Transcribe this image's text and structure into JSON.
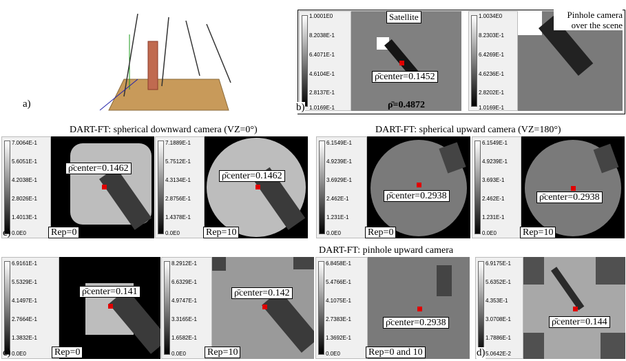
{
  "panel_labels": {
    "a": "a)",
    "b": "b)",
    "c1": "c)",
    "c2": "c)",
    "d": "d)"
  },
  "titles": {
    "down": "DART-FT: spherical downward camera (VZ=0°)",
    "up": "DART-FT: spherical upward camera (VZ=180°)",
    "pinhole": "DART-FT: pinhole upward camera"
  },
  "b": {
    "satellite_title": "Satellite",
    "pinhole_title_1": "Pinhole camera",
    "pinhole_title_2": "over the scene",
    "rho_center": "ρ̄center=0.1452",
    "rho_mean": "ρ̄=0.4872",
    "cbar1": [
      "1.0001E0",
      "8.2038E-1",
      "6.4071E-1",
      "4.6104E-1",
      "2.8137E-1",
      "1.0169E-1"
    ],
    "cbar2": [
      "1.0034E0",
      "8.2303E-1",
      "6.4269E-1",
      "4.6236E-1",
      "2.8202E-1",
      "1.0169E-1"
    ]
  },
  "row2": {
    "cbar1": [
      "7.0064E-1",
      "5.6051E-1",
      "4.2038E-1",
      "2.8026E-1",
      "1.4013E-1",
      "0.0E0"
    ],
    "cbar2": [
      "7.1889E-1",
      "5.7512E-1",
      "4.3134E-1",
      "2.8756E-1",
      "1.4378E-1",
      "0.0E0"
    ],
    "cbar3": [
      "6.1549E-1",
      "4.9239E-1",
      "3.6929E-1",
      "2.462E-1",
      "1.231E-1",
      "0.0E0"
    ],
    "cbar4": [
      "6.1549E-1",
      "4.9239E-1",
      "3.693E-1",
      "2.462E-1",
      "1.231E-1",
      "0.0E0"
    ],
    "rho1": "ρ̄center=0.1462",
    "rho2": "ρ̄center=0.1462",
    "rho3": "ρ̄center=0.2938",
    "rho4": "ρ̄center=0.2938",
    "rep1": "Rep=0",
    "rep2": "Rep=10",
    "rep3": "Rep=0",
    "rep4": "Rep=10"
  },
  "row3": {
    "cbar1": [
      "6.9161E-1",
      "5.5329E-1",
      "4.1497E-1",
      "2.7664E-1",
      "1.3832E-1",
      "0.0E0"
    ],
    "cbar2": [
      "8.2912E-1",
      "6.6329E-1",
      "4.9747E-1",
      "3.3165E-1",
      "1.6582E-1",
      "0.0E0"
    ],
    "cbar3": [
      "6.8458E-1",
      "5.4766E-1",
      "4.1075E-1",
      "2.7383E-1",
      "1.3692E-1",
      "0.0E0"
    ],
    "cbar4": [
      "6.9175E-1",
      "5.6352E-1",
      "4.353E-1",
      "3.0708E-1",
      "1.7886E-1",
      "5.0642E-2"
    ],
    "rho1": "ρ̄center=0.141",
    "rho2": "ρ̄center=0.142",
    "rho3": "ρ̄center=0.2938",
    "rho4": "ρ̄center=0.144",
    "rep1": "Rep=0",
    "rep2": "Rep=10",
    "rep3": "Rep=0 and 10"
  }
}
